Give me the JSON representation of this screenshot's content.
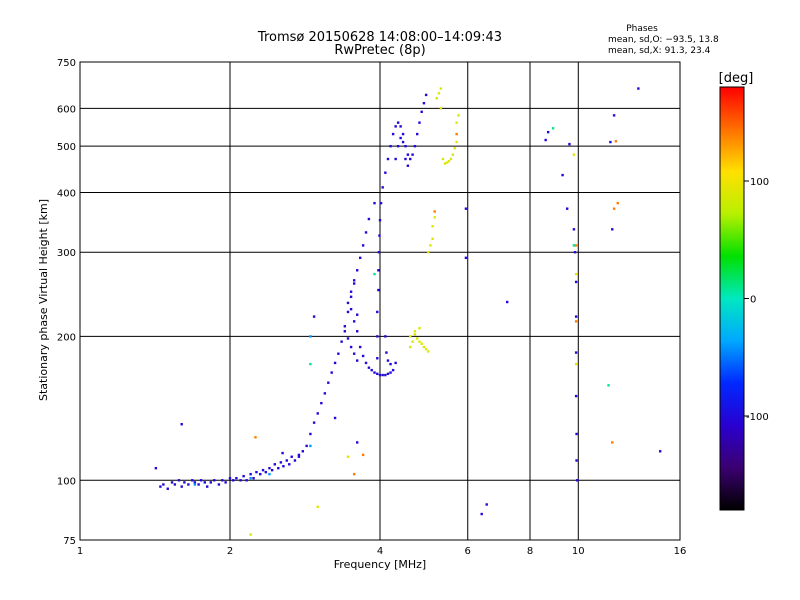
{
  "chart_data": {
    "type": "scatter",
    "title": "Tromsø 20150628 14:08:00–14:09:43",
    "subtitle": "RwPretec (8p)",
    "xlabel": "Frequency [MHz]",
    "ylabel": "Stationary phase Virtual Height [km]",
    "x_scale": "log2",
    "y_scale": "log",
    "xlim": [
      1,
      16
    ],
    "ylim": [
      75,
      750
    ],
    "x_ticks": [
      1,
      2,
      4,
      6,
      8,
      10,
      16
    ],
    "x_tick_labels": [
      "1",
      "2",
      "4",
      "6",
      "8",
      "10",
      "16"
    ],
    "y_ticks": [
      75,
      100,
      200,
      300,
      400,
      500,
      600,
      750
    ],
    "y_tick_labels": [
      "75",
      "100",
      "200",
      "300",
      "400",
      "500",
      "600",
      "750"
    ],
    "grid": true,
    "phases_box": {
      "title": "Phases",
      "line1": "mean, sd,O:  −93.5, 13.8",
      "line2": "mean, sd,X:  91.3, 23.4"
    },
    "colorbar": {
      "label": "[deg]",
      "range": [
        -180,
        180
      ],
      "tick_values": [
        100,
        0,
        -100
      ],
      "tick_labels": [
        "100",
        "0",
        "-100"
      ]
    },
    "series": [
      {
        "name": "blue points (phase ~ -100 deg)",
        "phase": -100,
        "points": [
          [
            1.42,
            106
          ],
          [
            1.45,
            97
          ],
          [
            1.47,
            98
          ],
          [
            1.5,
            96
          ],
          [
            1.53,
            99
          ],
          [
            1.55,
            98
          ],
          [
            1.58,
            100
          ],
          [
            1.6,
            97
          ],
          [
            1.62,
            99
          ],
          [
            1.65,
            98
          ],
          [
            1.68,
            100
          ],
          [
            1.7,
            99
          ],
          [
            1.73,
            98
          ],
          [
            1.75,
            100
          ],
          [
            1.78,
            99
          ],
          [
            1.8,
            97
          ],
          [
            1.83,
            99
          ],
          [
            1.86,
            100
          ],
          [
            1.9,
            98
          ],
          [
            1.93,
            100
          ],
          [
            1.96,
            99
          ],
          [
            2.0,
            101
          ],
          [
            2.03,
            100
          ],
          [
            2.06,
            101
          ],
          [
            2.1,
            100
          ],
          [
            2.13,
            102
          ],
          [
            2.16,
            100
          ],
          [
            2.2,
            103
          ],
          [
            2.23,
            101
          ],
          [
            2.26,
            104
          ],
          [
            2.3,
            103
          ],
          [
            2.33,
            105
          ],
          [
            2.36,
            104
          ],
          [
            2.4,
            106
          ],
          [
            2.43,
            105
          ],
          [
            2.46,
            108
          ],
          [
            2.5,
            106
          ],
          [
            2.53,
            109
          ],
          [
            2.56,
            107
          ],
          [
            2.6,
            110
          ],
          [
            2.63,
            108
          ],
          [
            2.66,
            112
          ],
          [
            2.7,
            110
          ],
          [
            2.75,
            113
          ],
          [
            2.8,
            115
          ],
          [
            2.85,
            118
          ],
          [
            2.9,
            125
          ],
          [
            2.95,
            132
          ],
          [
            3.0,
            138
          ],
          [
            3.05,
            145
          ],
          [
            3.1,
            152
          ],
          [
            3.15,
            160
          ],
          [
            3.2,
            168
          ],
          [
            3.25,
            176
          ],
          [
            3.3,
            184
          ],
          [
            3.35,
            195
          ],
          [
            3.4,
            210
          ],
          [
            3.45,
            225
          ],
          [
            3.5,
            242
          ],
          [
            3.55,
            258
          ],
          [
            3.6,
            275
          ],
          [
            3.65,
            292
          ],
          [
            3.7,
            310
          ],
          [
            3.75,
            330
          ],
          [
            3.8,
            352
          ],
          [
            3.6,
            205
          ],
          [
            3.65,
            190
          ],
          [
            3.7,
            182
          ],
          [
            3.75,
            176
          ],
          [
            3.8,
            172
          ],
          [
            3.85,
            170
          ],
          [
            3.9,
            168
          ],
          [
            3.95,
            167
          ],
          [
            4.0,
            166
          ],
          [
            4.05,
            166
          ],
          [
            4.1,
            166
          ],
          [
            4.15,
            167
          ],
          [
            4.2,
            168
          ],
          [
            4.25,
            170
          ],
          [
            4.3,
            176
          ],
          [
            3.45,
            235
          ],
          [
            3.5,
            228
          ],
          [
            3.55,
            215
          ],
          [
            3.6,
            222
          ],
          [
            3.5,
            248
          ],
          [
            3.55,
            262
          ],
          [
            3.4,
            205
          ],
          [
            3.45,
            198
          ],
          [
            3.5,
            190
          ],
          [
            3.55,
            184
          ],
          [
            3.6,
            178
          ],
          [
            3.95,
            180
          ],
          [
            3.95,
            200
          ],
          [
            3.95,
            225
          ],
          [
            3.97,
            250
          ],
          [
            3.97,
            275
          ],
          [
            3.98,
            300
          ],
          [
            3.99,
            325
          ],
          [
            4.0,
            350
          ],
          [
            4.02,
            380
          ],
          [
            4.05,
            410
          ],
          [
            4.1,
            440
          ],
          [
            4.15,
            470
          ],
          [
            4.2,
            500
          ],
          [
            4.25,
            530
          ],
          [
            4.3,
            550
          ],
          [
            4.35,
            560
          ],
          [
            4.4,
            550
          ],
          [
            4.45,
            530
          ],
          [
            4.5,
            500
          ],
          [
            4.55,
            480
          ],
          [
            4.6,
            470
          ],
          [
            4.65,
            480
          ],
          [
            4.7,
            500
          ],
          [
            4.75,
            530
          ],
          [
            4.8,
            560
          ],
          [
            4.85,
            590
          ],
          [
            4.9,
            615
          ],
          [
            4.95,
            640
          ],
          [
            4.3,
            470
          ],
          [
            4.35,
            500
          ],
          [
            4.4,
            520
          ],
          [
            4.45,
            510
          ],
          [
            4.5,
            470
          ],
          [
            4.55,
            455
          ],
          [
            4.1,
            200
          ],
          [
            4.12,
            185
          ],
          [
            4.15,
            178
          ],
          [
            4.2,
            175
          ],
          [
            1.6,
            131
          ],
          [
            2.55,
            114
          ],
          [
            2.75,
            112
          ],
          [
            2.95,
            220
          ],
          [
            3.25,
            135
          ],
          [
            3.6,
            120
          ],
          [
            3.9,
            380
          ],
          [
            5.95,
            370
          ],
          [
            5.95,
            292
          ],
          [
            6.4,
            85
          ],
          [
            6.55,
            89
          ],
          [
            7.2,
            236
          ],
          [
            8.6,
            515
          ],
          [
            8.7,
            535
          ],
          [
            9.3,
            435
          ],
          [
            9.6,
            505
          ],
          [
            9.5,
            370
          ],
          [
            9.8,
            335
          ],
          [
            9.85,
            300
          ],
          [
            9.9,
            260
          ],
          [
            9.9,
            220
          ],
          [
            9.9,
            185
          ],
          [
            9.9,
            150
          ],
          [
            9.92,
            125
          ],
          [
            9.92,
            110
          ],
          [
            9.95,
            100
          ],
          [
            11.6,
            510
          ],
          [
            11.8,
            580
          ],
          [
            11.7,
            335
          ],
          [
            13.2,
            660
          ],
          [
            14.6,
            115
          ]
        ]
      },
      {
        "name": "cyan points (phase ~ -40 deg)",
        "phase": -40,
        "points": [
          [
            1.7,
            98
          ],
          [
            2.2,
            101
          ],
          [
            2.4,
            103
          ],
          [
            2.9,
            118
          ],
          [
            2.9,
            200
          ]
        ]
      },
      {
        "name": "green points (phase ~ 10 deg)",
        "phase": 10,
        "points": [
          [
            2.9,
            175
          ],
          [
            3.9,
            270
          ],
          [
            8.9,
            545
          ],
          [
            9.8,
            310
          ],
          [
            11.5,
            158
          ]
        ]
      },
      {
        "name": "yellow points (phase ~ 90 deg)",
        "phase": 90,
        "points": [
          [
            4.6,
            200
          ],
          [
            4.65,
            195
          ],
          [
            4.7,
            202
          ],
          [
            4.75,
            198
          ],
          [
            4.8,
            195
          ],
          [
            4.85,
            193
          ],
          [
            4.9,
            190
          ],
          [
            4.95,
            188
          ],
          [
            5.0,
            186
          ],
          [
            4.7,
            205
          ],
          [
            4.8,
            208
          ],
          [
            4.6,
            190
          ],
          [
            5.0,
            300
          ],
          [
            5.05,
            310
          ],
          [
            5.1,
            320
          ],
          [
            5.1,
            340
          ],
          [
            5.15,
            355
          ],
          [
            5.2,
            630
          ],
          [
            5.25,
            645
          ],
          [
            5.3,
            660
          ],
          [
            5.3,
            600
          ],
          [
            5.35,
            470
          ],
          [
            5.4,
            460
          ],
          [
            5.45,
            462
          ],
          [
            5.5,
            465
          ],
          [
            5.55,
            470
          ],
          [
            5.6,
            480
          ],
          [
            5.65,
            495
          ],
          [
            5.7,
            510
          ],
          [
            5.7,
            560
          ],
          [
            5.75,
            580
          ],
          [
            2.2,
            77
          ],
          [
            3.0,
            88
          ],
          [
            3.45,
            112
          ],
          [
            9.8,
            480
          ],
          [
            9.9,
            270
          ],
          [
            9.9,
            175
          ]
        ]
      },
      {
        "name": "orange/red points (phase ~ 140 deg)",
        "phase": 140,
        "points": [
          [
            2.25,
            123
          ],
          [
            3.55,
            103
          ],
          [
            3.7,
            113
          ],
          [
            5.15,
            365
          ],
          [
            5.7,
            530
          ],
          [
            12.0,
            380
          ],
          [
            11.8,
            370
          ],
          [
            11.9,
            512
          ],
          [
            9.9,
            310
          ],
          [
            9.9,
            215
          ],
          [
            11.7,
            120
          ]
        ]
      }
    ]
  }
}
